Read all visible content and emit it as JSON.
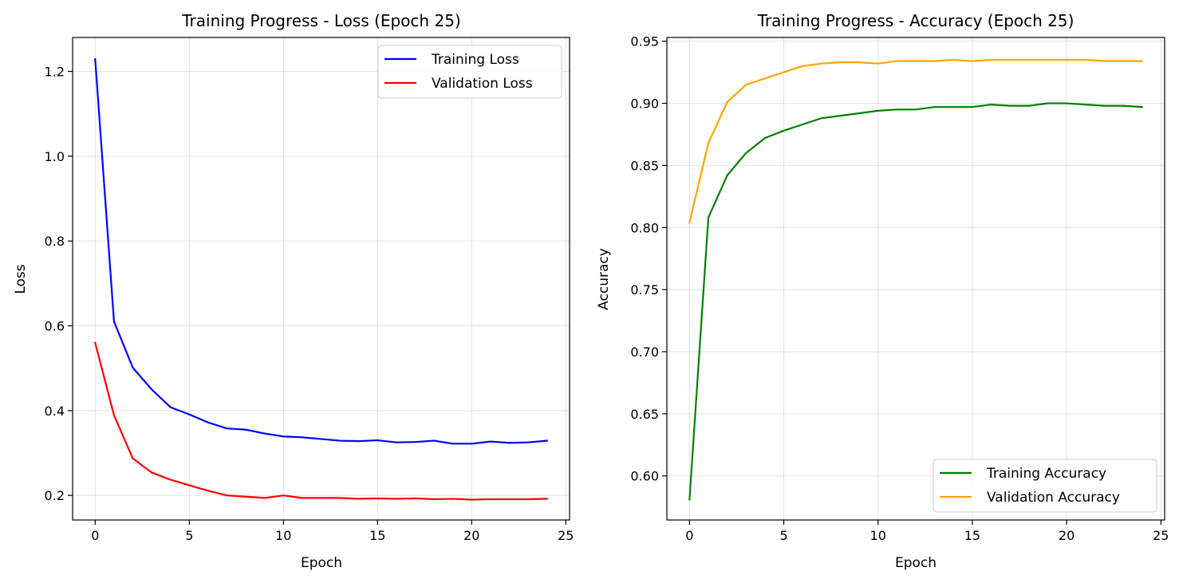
{
  "chart_data": [
    {
      "type": "line",
      "title": "Training Progress - Loss (Epoch 25)",
      "xlabel": "Epoch",
      "ylabel": "Loss",
      "xlim": [
        -1.2,
        25.2
      ],
      "ylim": [
        0.142,
        1.28
      ],
      "xticks": [
        0,
        5,
        10,
        15,
        20,
        25
      ],
      "yticks": [
        0.2,
        0.4,
        0.6,
        0.8,
        1.0,
        1.2
      ],
      "ytick_labels": [
        "0.2",
        "0.4",
        "0.6",
        "0.8",
        "1.0",
        "1.2"
      ],
      "grid": true,
      "legend_position": "upper right",
      "x": [
        0,
        1,
        2,
        3,
        4,
        5,
        6,
        7,
        8,
        9,
        10,
        11,
        12,
        13,
        14,
        15,
        16,
        17,
        18,
        19,
        20,
        21,
        22,
        23,
        24
      ],
      "series": [
        {
          "name": "Training Loss",
          "color": "#0000ff",
          "values": [
            1.229,
            0.61,
            0.501,
            0.45,
            0.408,
            0.391,
            0.372,
            0.358,
            0.355,
            0.346,
            0.339,
            0.337,
            0.333,
            0.329,
            0.328,
            0.33,
            0.325,
            0.326,
            0.329,
            0.322,
            0.322,
            0.327,
            0.324,
            0.325,
            0.329
          ]
        },
        {
          "name": "Validation Loss",
          "color": "#ff0000",
          "values": [
            0.56,
            0.389,
            0.287,
            0.254,
            0.237,
            0.224,
            0.211,
            0.2,
            0.197,
            0.194,
            0.2,
            0.194,
            0.194,
            0.194,
            0.192,
            0.193,
            0.192,
            0.193,
            0.191,
            0.192,
            0.19,
            0.191,
            0.191,
            0.191,
            0.192
          ]
        }
      ]
    },
    {
      "type": "line",
      "title": "Training Progress - Accuracy (Epoch 25)",
      "xlabel": "Epoch",
      "ylabel": "Accuracy",
      "xlim": [
        -1.2,
        25.2
      ],
      "ylim": [
        0.5645,
        0.953
      ],
      "xticks": [
        0,
        5,
        10,
        15,
        20,
        25
      ],
      "yticks": [
        0.6,
        0.65,
        0.7,
        0.75,
        0.8,
        0.85,
        0.9,
        0.95
      ],
      "ytick_labels": [
        "0.60",
        "0.65",
        "0.70",
        "0.75",
        "0.80",
        "0.85",
        "0.90",
        "0.95"
      ],
      "grid": true,
      "legend_position": "lower right",
      "x": [
        0,
        1,
        2,
        3,
        4,
        5,
        6,
        7,
        8,
        9,
        10,
        11,
        12,
        13,
        14,
        15,
        16,
        17,
        18,
        19,
        20,
        21,
        22,
        23,
        24
      ],
      "series": [
        {
          "name": "Training Accuracy",
          "color": "#008000",
          "values": [
            0.581,
            0.808,
            0.842,
            0.86,
            0.872,
            0.878,
            0.883,
            0.888,
            0.89,
            0.892,
            0.894,
            0.895,
            0.895,
            0.897,
            0.897,
            0.897,
            0.899,
            0.898,
            0.898,
            0.9,
            0.9,
            0.899,
            0.898,
            0.898,
            0.897
          ]
        },
        {
          "name": "Validation Accuracy",
          "color": "#ffa500",
          "values": [
            0.804,
            0.868,
            0.901,
            0.915,
            0.92,
            0.925,
            0.93,
            0.932,
            0.933,
            0.933,
            0.932,
            0.934,
            0.934,
            0.934,
            0.935,
            0.934,
            0.935,
            0.935,
            0.935,
            0.935,
            0.935,
            0.935,
            0.934,
            0.934,
            0.934
          ]
        }
      ]
    }
  ]
}
